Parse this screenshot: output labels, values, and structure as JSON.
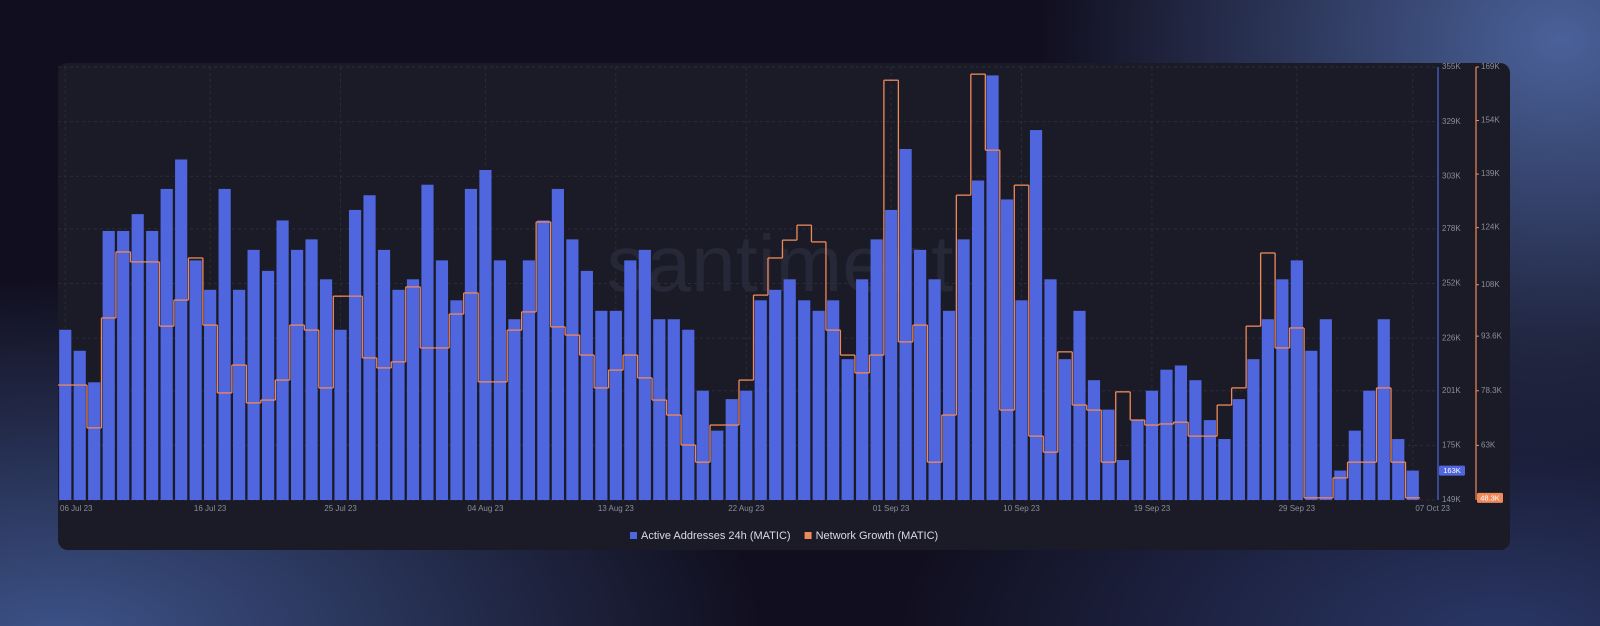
{
  "chart_data": {
    "type": "bar-step",
    "watermark": "santiment",
    "categories": [
      "06 Jul 23",
      null,
      null,
      null,
      null,
      null,
      null,
      null,
      null,
      null,
      "16 Jul 23",
      null,
      null,
      null,
      null,
      null,
      null,
      null,
      null,
      "25 Jul 23",
      null,
      null,
      null,
      null,
      null,
      null,
      null,
      null,
      null,
      "04 Aug 23",
      null,
      null,
      null,
      null,
      null,
      null,
      null,
      null,
      "13 Aug 23",
      null,
      null,
      null,
      null,
      null,
      null,
      null,
      null,
      "22 Aug 23",
      null,
      null,
      null,
      null,
      null,
      null,
      null,
      null,
      null,
      "01 Sep 23",
      null,
      null,
      null,
      null,
      null,
      null,
      null,
      null,
      "10 Sep 23",
      null,
      null,
      null,
      null,
      null,
      null,
      null,
      null,
      "19 Sep 23",
      null,
      null,
      null,
      null,
      null,
      null,
      null,
      null,
      null,
      "29 Sep 23",
      null,
      null,
      null,
      null,
      null,
      null,
      null,
      "07 Oct 23"
    ],
    "series": [
      {
        "name": "Active Addresses 24h (MATIC)",
        "color": "#5066de",
        "type": "bar",
        "current_label": "163K",
        "values": [
          230000,
          220000,
          205000,
          277000,
          277000,
          285000,
          277000,
          297000,
          311000,
          263000,
          249000,
          297000,
          249000,
          268000,
          258000,
          282000,
          268000,
          273000,
          254000,
          230000,
          287000,
          294000,
          268000,
          249000,
          254000,
          299000,
          263000,
          244000,
          297000,
          306000,
          263000,
          235000,
          263000,
          282000,
          297000,
          273000,
          258000,
          239000,
          239000,
          263000,
          268000,
          235000,
          235000,
          230000,
          201000,
          182000,
          197000,
          201000,
          244000,
          249000,
          254000,
          244000,
          239000,
          244000,
          216000,
          254000,
          273000,
          287000,
          316000,
          268000,
          254000,
          239000,
          273000,
          301000,
          351000,
          292000,
          244000,
          325000,
          254000,
          216000,
          239000,
          206000,
          192000,
          168000,
          187000,
          201000,
          211000,
          213000,
          206000,
          187000,
          178000,
          197000,
          216000,
          235000,
          254000,
          263000,
          220000,
          235000,
          163000,
          182000,
          201000,
          235000,
          178000,
          163000
        ]
      },
      {
        "name": "Network Growth (MATIC)",
        "color": "#f0895a",
        "type": "step",
        "axis": "y2",
        "current_label": "48.3K",
        "values": [
          79900,
          79900,
          67900,
          98700,
          117200,
          114400,
          114400,
          96400,
          103700,
          115500,
          96700,
          77700,
          85500,
          74900,
          75700,
          81300,
          96700,
          95300,
          79100,
          104800,
          104800,
          87500,
          84700,
          86400,
          107400,
          90300,
          90300,
          99800,
          105700,
          80800,
          80800,
          95300,
          100400,
          125600,
          96200,
          93900,
          88300,
          79100,
          84100,
          88300,
          81900,
          75700,
          71500,
          63100,
          58300,
          68700,
          68700,
          81300,
          105100,
          115500,
          120500,
          124700,
          120000,
          95300,
          88300,
          83300,
          88300,
          165300,
          92000,
          96700,
          58300,
          71500,
          133100,
          167000,
          145700,
          72900,
          135900,
          65600,
          61100,
          89200,
          74300,
          72900,
          58300,
          78000,
          70100,
          68700,
          69000,
          69500,
          65600,
          65600,
          74300,
          79100,
          96400,
          116900,
          90300,
          95900,
          48300,
          48300,
          53900,
          58300,
          58300,
          79100,
          58300,
          48300
        ]
      }
    ],
    "ylim": [
      149000,
      355000
    ],
    "yticks": [
      {
        "value": 149000,
        "label": "149K"
      },
      {
        "value": 175000,
        "label": "175K"
      },
      {
        "value": 201000,
        "label": "201K"
      },
      {
        "value": 226000,
        "label": "226K"
      },
      {
        "value": 252000,
        "label": "252K"
      },
      {
        "value": 278000,
        "label": "278K"
      },
      {
        "value": 303000,
        "label": "303K"
      },
      {
        "value": 329000,
        "label": "329K"
      },
      {
        "value": 355000,
        "label": "355K"
      }
    ],
    "y2lim": [
      47700,
      169000
    ],
    "y2ticks": [
      {
        "value": 63000,
        "label": "63K"
      },
      {
        "value": 78300,
        "label": "78.3K"
      },
      {
        "value": 93600,
        "label": "93.6K"
      },
      {
        "value": 108000,
        "label": "108K"
      },
      {
        "value": 124000,
        "label": "124K"
      },
      {
        "value": 139000,
        "label": "139K"
      },
      {
        "value": 154000,
        "label": "154K"
      },
      {
        "value": 169000,
        "label": "169K"
      }
    ],
    "grid": true,
    "legend": "bottom"
  }
}
